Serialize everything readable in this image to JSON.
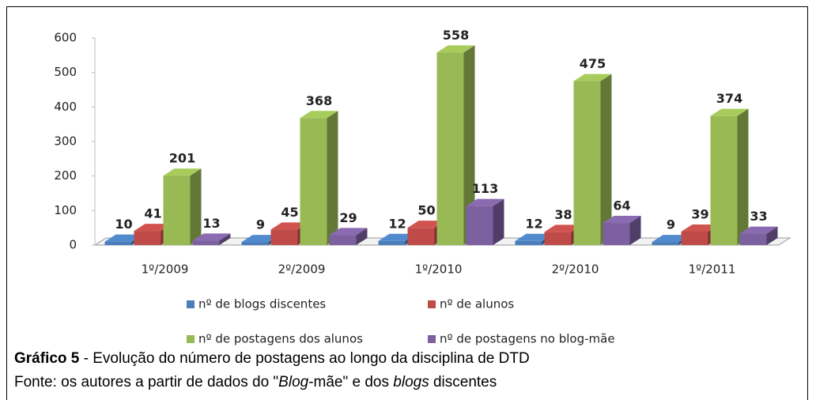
{
  "chart_data": {
    "type": "bar3d",
    "categories": [
      "1º/2009",
      "2º/2009",
      "1º/2010",
      "2º/2010",
      "1º/2011"
    ],
    "series": [
      {
        "name": "nº de blogs discentes",
        "color": "#4a7ebb",
        "values": [
          10,
          9,
          12,
          12,
          9
        ]
      },
      {
        "name": "nº de alunos",
        "color": "#be4b48",
        "values": [
          41,
          45,
          50,
          38,
          39
        ]
      },
      {
        "name": "nº de postagens dos alunos",
        "color": "#98b954",
        "values": [
          201,
          368,
          558,
          475,
          374
        ]
      },
      {
        "name": "nº de postagens no blog-mãe",
        "color": "#7d60a0",
        "values": [
          13,
          29,
          113,
          64,
          33
        ]
      }
    ],
    "ylim": [
      0,
      600
    ],
    "yticks": [
      0,
      100,
      200,
      300,
      400,
      500,
      600
    ],
    "grid": false,
    "legend": "bottom"
  },
  "caption": {
    "label": "Gráfico 5",
    "text": " - Evolução do número de postagens ao longo da disciplina de DTD",
    "source": [
      "Fonte: os autores a partir de dados do \"",
      "Blog",
      "-mãe\" e dos ",
      "blogs",
      " discentes"
    ]
  }
}
